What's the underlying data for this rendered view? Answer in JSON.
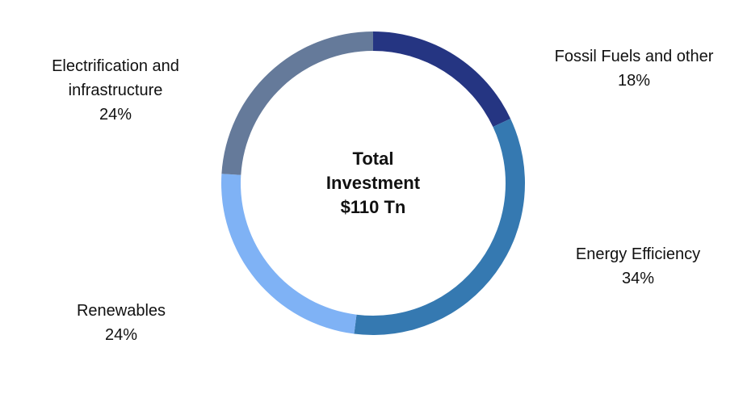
{
  "chart_data": {
    "type": "donut",
    "center_label": "Total Investment $110 Tn",
    "categories": [
      "Fossil Fuels and other",
      "Energy Efficiency",
      "Renewables",
      "Electrification and infrastructure"
    ],
    "values": [
      18,
      34,
      24,
      24
    ],
    "value_labels": [
      "18%",
      "34%",
      "24%",
      "24%"
    ],
    "colors": [
      "#253582",
      "#3579b1",
      "#7fb2f5",
      "#657a9a"
    ]
  }
}
